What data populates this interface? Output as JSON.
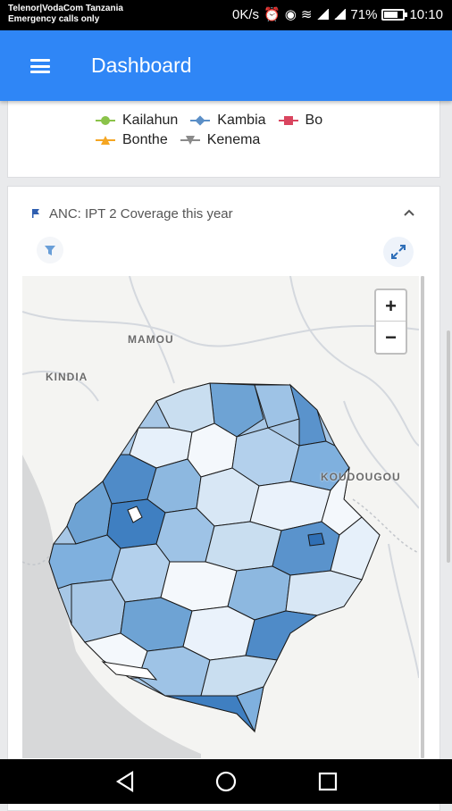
{
  "status_bar": {
    "carrier": "Telenor|VodaCom Tanzania",
    "emergency": "Emergency calls only",
    "speed": "0K/s",
    "battery": "71%",
    "time": "10:10"
  },
  "app_bar": {
    "title": "Dashboard",
    "menu_icon": "hamburger-menu-icon"
  },
  "legend": {
    "items": [
      {
        "label": "Kailahun",
        "color": "#8bc34a",
        "marker": "circle"
      },
      {
        "label": "Kambia",
        "color": "#5b8fc7",
        "marker": "diamond"
      },
      {
        "label": "Bo",
        "color": "#d9455f",
        "marker": "square"
      },
      {
        "label": "Bonthe",
        "color": "#f5a623",
        "marker": "triangle"
      },
      {
        "label": "Kenema",
        "color": "#8a8a8a",
        "marker": "triangle-down"
      }
    ]
  },
  "map_card": {
    "title": "ANC: IPT 2 Coverage this year",
    "header_icon": "map-flag-icon",
    "filter_icon": "filter-icon",
    "expand_icon": "fullscreen-expand-icon",
    "collapse_icon": "chevron-up-icon"
  },
  "map": {
    "zoom_in": "+",
    "zoom_out": "−",
    "places": [
      "MAMOU",
      "KINDIA",
      "KOUDOUGOU"
    ],
    "fill_color_light": "#eef4fb",
    "fill_color_dark": "#3a78bd"
  },
  "colors": {
    "app_bar": "#2f86f6",
    "accent": "#2f86f6"
  }
}
